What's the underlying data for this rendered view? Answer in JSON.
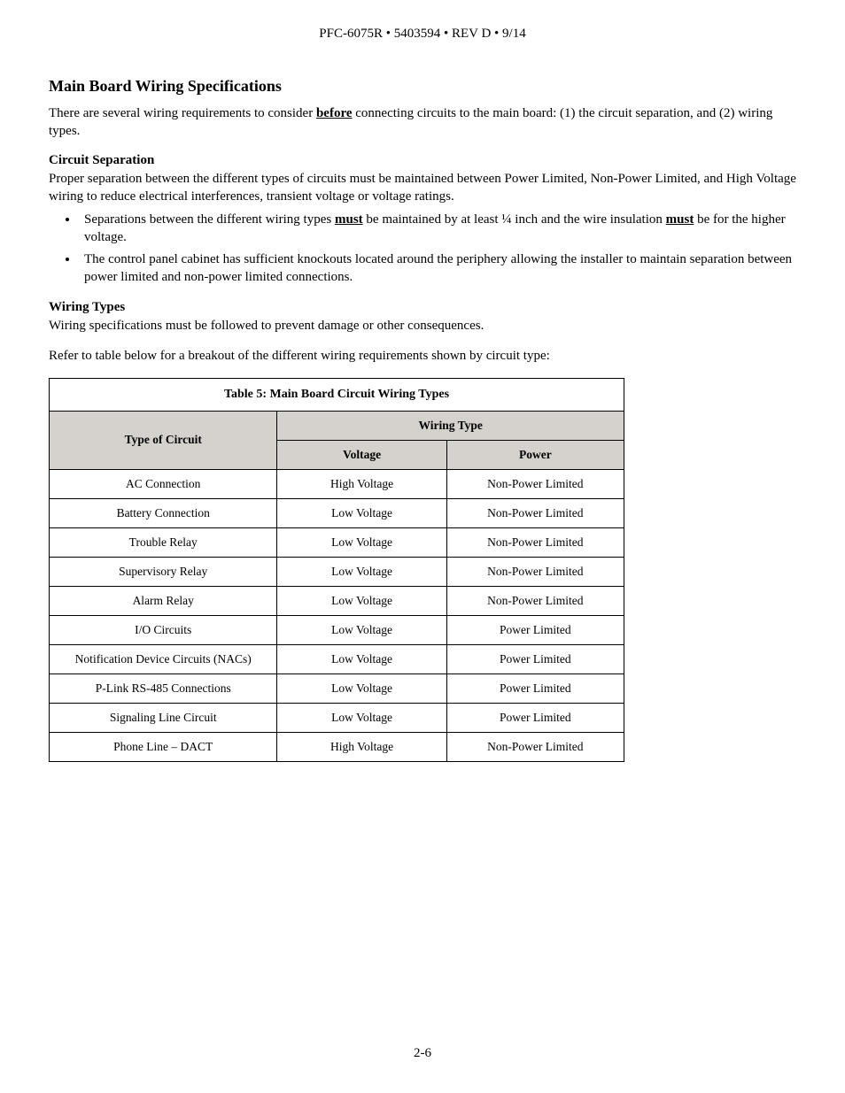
{
  "header": "PFC-6075R • 5403594 • REV D • 9/14",
  "section_title": "Main Board Wiring Specifications",
  "intro": {
    "pre": "There are several wiring requirements to consider ",
    "emph": "before",
    "post": " connecting circuits to the main board: (1) the circuit separation, and (2) wiring types."
  },
  "circuit_sep": {
    "head": "Circuit Separation",
    "para": "Proper separation between the different types of circuits must be maintained between Power Limited, Non-Power Limited, and High Voltage wiring to reduce electrical interferences, transient voltage or voltage ratings.",
    "bullet1": {
      "a": "Separations between the different wiring types ",
      "m1": "must",
      "b": " be maintained by at least ¼ inch and the wire insulation ",
      "m2": "must",
      "c": " be for the higher voltage."
    },
    "bullet2": "The control panel cabinet has sufficient knockouts located around the periphery allowing the installer to maintain separation between power limited and non-power limited connections."
  },
  "wiring_types": {
    "head": "Wiring Types",
    "para": "Wiring specifications must be followed to prevent damage or other consequences.",
    "refer": "Refer to table below for a breakout of the different wiring requirements shown by circuit type:"
  },
  "table": {
    "title": "Table 5: Main Board Circuit Wiring Types",
    "sup_header": "Wiring Type",
    "col1": "Type of Circuit",
    "col2": "Voltage",
    "col3": "Power",
    "rows": [
      {
        "c1": "AC Connection",
        "c2": "High Voltage",
        "c3": "Non-Power Limited"
      },
      {
        "c1": "Battery Connection",
        "c2": "Low Voltage",
        "c3": "Non-Power Limited"
      },
      {
        "c1": "Trouble Relay",
        "c2": "Low Voltage",
        "c3": "Non-Power Limited"
      },
      {
        "c1": "Supervisory Relay",
        "c2": "Low Voltage",
        "c3": "Non-Power Limited"
      },
      {
        "c1": "Alarm Relay",
        "c2": "Low Voltage",
        "c3": "Non-Power Limited"
      },
      {
        "c1": "I/O Circuits",
        "c2": "Low Voltage",
        "c3": "Power Limited"
      },
      {
        "c1": "Notification Device Circuits (NACs)",
        "c2": "Low Voltage",
        "c3": "Power Limited"
      },
      {
        "c1": "P-Link RS-485 Connections",
        "c2": "Low Voltage",
        "c3": "Power Limited"
      },
      {
        "c1": "Signaling Line Circuit",
        "c2": "Low Voltage",
        "c3": "Power Limited"
      },
      {
        "c1": "Phone Line – DACT",
        "c2": "High Voltage",
        "c3": "Non-Power Limited"
      }
    ]
  },
  "page_num": "2-6"
}
